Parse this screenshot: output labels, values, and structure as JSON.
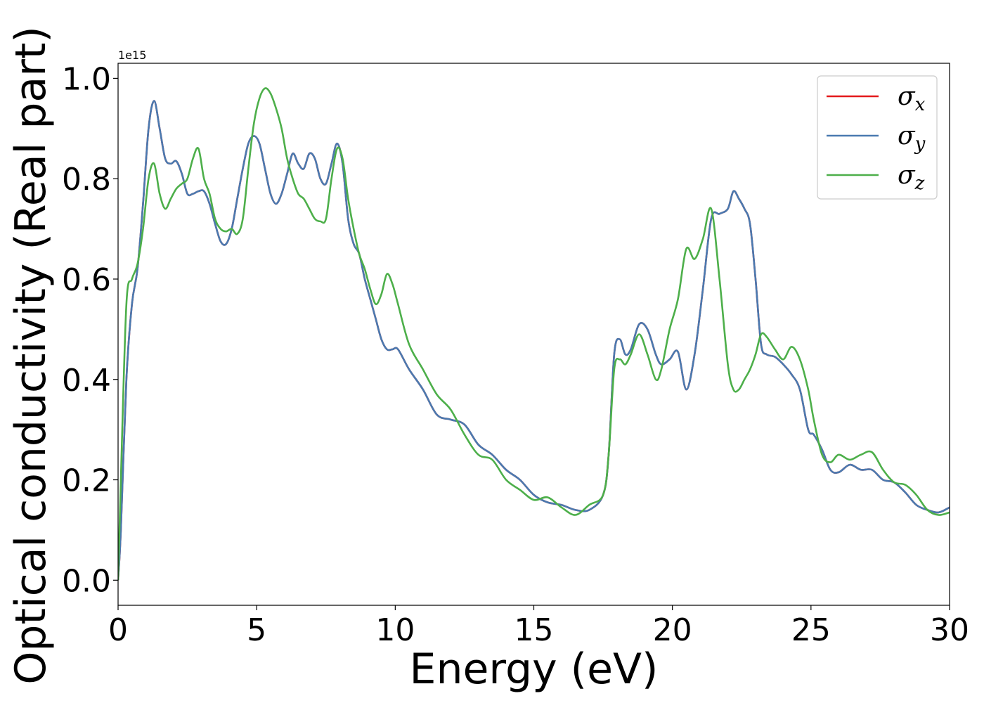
{
  "chart_data": {
    "type": "line",
    "xlabel": "Energy (eV)",
    "ylabel": "Optical conductivity (Real part)",
    "y_offset_label": "1e15",
    "xlim": [
      0,
      30
    ],
    "ylim": [
      -0.05,
      1.03
    ],
    "xticks": [
      0,
      5,
      10,
      15,
      20,
      25,
      30
    ],
    "xtick_labels": [
      "0",
      "5",
      "10",
      "15",
      "20",
      "25",
      "30"
    ],
    "yticks": [
      0.0,
      0.2,
      0.4,
      0.6,
      0.8,
      1.0
    ],
    "ytick_labels": [
      "0.0",
      "0.2",
      "0.4",
      "0.6",
      "0.8",
      "1.0"
    ],
    "grid": false,
    "legend_position": "top-right",
    "series": [
      {
        "name": "σx",
        "symbol": "σ",
        "subscript": "x",
        "color": "#e41a1c",
        "x": [
          0,
          0.1,
          0.3,
          0.5,
          0.7,
          0.9,
          1.1,
          1.3,
          1.5,
          1.7,
          1.9,
          2.1,
          2.3,
          2.5,
          2.7,
          2.9,
          3.1,
          3.3,
          3.5,
          3.7,
          3.9,
          4.1,
          4.3,
          4.5,
          4.7,
          4.9,
          5.1,
          5.3,
          5.5,
          5.7,
          5.9,
          6.1,
          6.3,
          6.5,
          6.7,
          6.9,
          7.1,
          7.3,
          7.5,
          7.7,
          7.9,
          8.1,
          8.3,
          8.5,
          8.7,
          8.9,
          9.1,
          9.3,
          9.5,
          9.7,
          9.9,
          10.1,
          10.5,
          11.0,
          11.5,
          12.0,
          12.5,
          13.0,
          13.5,
          14.0,
          14.5,
          15.0,
          15.5,
          16.0,
          16.5,
          17.0,
          17.5,
          17.7,
          17.9,
          18.1,
          18.3,
          18.5,
          18.8,
          19.1,
          19.4,
          19.6,
          19.9,
          20.2,
          20.5,
          20.8,
          21.1,
          21.4,
          21.7,
          22.0,
          22.2,
          22.4,
          22.6,
          22.8,
          23.0,
          23.2,
          23.4,
          23.7,
          24.0,
          24.3,
          24.6,
          24.9,
          25.1,
          25.4,
          25.7,
          26.0,
          26.4,
          26.8,
          27.2,
          27.6,
          28.0,
          28.4,
          28.8,
          29.2,
          29.6,
          30.0
        ],
        "y": [
          0.0,
          0.1,
          0.4,
          0.55,
          0.62,
          0.75,
          0.9,
          0.955,
          0.9,
          0.84,
          0.83,
          0.835,
          0.81,
          0.77,
          0.77,
          0.775,
          0.775,
          0.75,
          0.71,
          0.675,
          0.67,
          0.7,
          0.76,
          0.82,
          0.87,
          0.885,
          0.87,
          0.82,
          0.77,
          0.75,
          0.77,
          0.81,
          0.85,
          0.83,
          0.82,
          0.85,
          0.84,
          0.8,
          0.79,
          0.83,
          0.87,
          0.83,
          0.72,
          0.67,
          0.65,
          0.6,
          0.56,
          0.52,
          0.48,
          0.46,
          0.46,
          0.46,
          0.42,
          0.38,
          0.33,
          0.32,
          0.31,
          0.27,
          0.25,
          0.22,
          0.2,
          0.17,
          0.155,
          0.15,
          0.14,
          0.14,
          0.17,
          0.25,
          0.45,
          0.48,
          0.45,
          0.46,
          0.51,
          0.5,
          0.45,
          0.43,
          0.44,
          0.455,
          0.38,
          0.45,
          0.58,
          0.72,
          0.73,
          0.74,
          0.775,
          0.76,
          0.74,
          0.71,
          0.6,
          0.47,
          0.45,
          0.445,
          0.43,
          0.41,
          0.38,
          0.3,
          0.29,
          0.26,
          0.22,
          0.215,
          0.23,
          0.22,
          0.22,
          0.2,
          0.195,
          0.175,
          0.15,
          0.14,
          0.135,
          0.145
        ]
      },
      {
        "name": "σy",
        "symbol": "σ",
        "subscript": "y",
        "color": "#4a7ab0",
        "x": [
          0,
          0.1,
          0.3,
          0.5,
          0.7,
          0.9,
          1.1,
          1.3,
          1.5,
          1.7,
          1.9,
          2.1,
          2.3,
          2.5,
          2.7,
          2.9,
          3.1,
          3.3,
          3.5,
          3.7,
          3.9,
          4.1,
          4.3,
          4.5,
          4.7,
          4.9,
          5.1,
          5.3,
          5.5,
          5.7,
          5.9,
          6.1,
          6.3,
          6.5,
          6.7,
          6.9,
          7.1,
          7.3,
          7.5,
          7.7,
          7.9,
          8.1,
          8.3,
          8.5,
          8.7,
          8.9,
          9.1,
          9.3,
          9.5,
          9.7,
          9.9,
          10.1,
          10.5,
          11.0,
          11.5,
          12.0,
          12.5,
          13.0,
          13.5,
          14.0,
          14.5,
          15.0,
          15.5,
          16.0,
          16.5,
          17.0,
          17.5,
          17.7,
          17.9,
          18.1,
          18.3,
          18.5,
          18.8,
          19.1,
          19.4,
          19.6,
          19.9,
          20.2,
          20.5,
          20.8,
          21.1,
          21.4,
          21.7,
          22.0,
          22.2,
          22.4,
          22.6,
          22.8,
          23.0,
          23.2,
          23.4,
          23.7,
          24.0,
          24.3,
          24.6,
          24.9,
          25.1,
          25.4,
          25.7,
          26.0,
          26.4,
          26.8,
          27.2,
          27.6,
          28.0,
          28.4,
          28.8,
          29.2,
          29.6,
          30.0
        ],
        "y": [
          0.0,
          0.1,
          0.4,
          0.55,
          0.62,
          0.75,
          0.9,
          0.955,
          0.9,
          0.84,
          0.83,
          0.835,
          0.81,
          0.77,
          0.77,
          0.775,
          0.775,
          0.75,
          0.71,
          0.675,
          0.67,
          0.7,
          0.76,
          0.82,
          0.87,
          0.885,
          0.87,
          0.82,
          0.77,
          0.75,
          0.77,
          0.81,
          0.85,
          0.83,
          0.82,
          0.85,
          0.84,
          0.8,
          0.79,
          0.83,
          0.87,
          0.83,
          0.72,
          0.67,
          0.65,
          0.6,
          0.56,
          0.52,
          0.48,
          0.46,
          0.46,
          0.46,
          0.42,
          0.38,
          0.33,
          0.32,
          0.31,
          0.27,
          0.25,
          0.22,
          0.2,
          0.17,
          0.155,
          0.15,
          0.14,
          0.14,
          0.17,
          0.25,
          0.45,
          0.48,
          0.45,
          0.46,
          0.51,
          0.5,
          0.45,
          0.43,
          0.44,
          0.455,
          0.38,
          0.45,
          0.58,
          0.72,
          0.73,
          0.74,
          0.775,
          0.76,
          0.74,
          0.71,
          0.6,
          0.47,
          0.45,
          0.445,
          0.43,
          0.41,
          0.38,
          0.3,
          0.29,
          0.26,
          0.22,
          0.215,
          0.23,
          0.22,
          0.22,
          0.2,
          0.195,
          0.175,
          0.15,
          0.14,
          0.135,
          0.145
        ]
      },
      {
        "name": "σz",
        "symbol": "σ",
        "subscript": "z",
        "color": "#4daf4a",
        "x": [
          0,
          0.1,
          0.3,
          0.5,
          0.7,
          0.9,
          1.1,
          1.3,
          1.5,
          1.7,
          1.9,
          2.1,
          2.3,
          2.5,
          2.7,
          2.9,
          3.1,
          3.3,
          3.5,
          3.7,
          3.9,
          4.1,
          4.3,
          4.5,
          4.7,
          4.9,
          5.1,
          5.3,
          5.5,
          5.7,
          5.9,
          6.1,
          6.3,
          6.5,
          6.7,
          6.9,
          7.1,
          7.3,
          7.5,
          7.7,
          7.9,
          8.1,
          8.3,
          8.5,
          8.7,
          8.9,
          9.1,
          9.3,
          9.5,
          9.7,
          9.9,
          10.1,
          10.5,
          11.0,
          11.5,
          12.0,
          12.5,
          13.0,
          13.5,
          14.0,
          14.5,
          15.0,
          15.5,
          16.0,
          16.5,
          17.0,
          17.5,
          17.7,
          17.9,
          18.1,
          18.3,
          18.5,
          18.8,
          19.1,
          19.4,
          19.6,
          19.9,
          20.2,
          20.5,
          20.8,
          21.1,
          21.4,
          21.7,
          22.0,
          22.2,
          22.4,
          22.6,
          22.8,
          23.0,
          23.2,
          23.4,
          23.7,
          24.0,
          24.3,
          24.6,
          24.9,
          25.1,
          25.4,
          25.7,
          26.0,
          26.4,
          26.8,
          27.2,
          27.6,
          28.0,
          28.4,
          28.8,
          29.2,
          29.6,
          30.0
        ],
        "y": [
          0.0,
          0.2,
          0.55,
          0.6,
          0.63,
          0.7,
          0.8,
          0.83,
          0.77,
          0.74,
          0.76,
          0.78,
          0.79,
          0.8,
          0.84,
          0.86,
          0.8,
          0.77,
          0.72,
          0.7,
          0.695,
          0.7,
          0.69,
          0.72,
          0.82,
          0.91,
          0.96,
          0.98,
          0.97,
          0.94,
          0.9,
          0.84,
          0.8,
          0.77,
          0.76,
          0.74,
          0.72,
          0.715,
          0.72,
          0.8,
          0.86,
          0.84,
          0.76,
          0.7,
          0.65,
          0.62,
          0.58,
          0.55,
          0.57,
          0.61,
          0.59,
          0.55,
          0.47,
          0.42,
          0.37,
          0.34,
          0.29,
          0.25,
          0.24,
          0.2,
          0.18,
          0.16,
          0.165,
          0.145,
          0.13,
          0.15,
          0.17,
          0.25,
          0.42,
          0.44,
          0.43,
          0.45,
          0.49,
          0.45,
          0.4,
          0.42,
          0.5,
          0.56,
          0.66,
          0.64,
          0.68,
          0.74,
          0.6,
          0.43,
          0.38,
          0.38,
          0.4,
          0.42,
          0.45,
          0.49,
          0.485,
          0.46,
          0.44,
          0.465,
          0.44,
          0.38,
          0.32,
          0.25,
          0.235,
          0.25,
          0.24,
          0.25,
          0.255,
          0.22,
          0.195,
          0.19,
          0.17,
          0.14,
          0.13,
          0.135
        ]
      }
    ]
  }
}
